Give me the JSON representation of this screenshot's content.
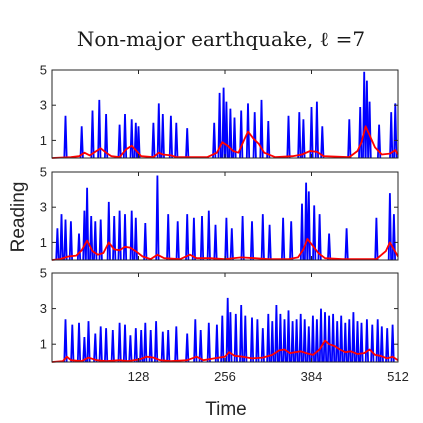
{
  "chart_data": {
    "type": "line",
    "title": "Non-major earthquake, ℓ =7",
    "xlabel": "Time",
    "ylabel": "Reading",
    "xlim": [
      0,
      512
    ],
    "ylim": [
      0,
      5
    ],
    "xticks": [
      "128",
      "256",
      "384",
      "512"
    ],
    "yticks": [
      "1",
      "3",
      "5"
    ],
    "colors": {
      "raw": "#0000ff",
      "smoothed": "#ff0000"
    },
    "panels": [
      {
        "spikes": [
          [
            20,
            2.4
          ],
          [
            44,
            1.8
          ],
          [
            60,
            2.7
          ],
          [
            70,
            3.3
          ],
          [
            80,
            2.5
          ],
          [
            100,
            1.9
          ],
          [
            108,
            2.5
          ],
          [
            118,
            2.2
          ],
          [
            124,
            2.0
          ],
          [
            128,
            1.8
          ],
          [
            150,
            2.0
          ],
          [
            158,
            3.1
          ],
          [
            164,
            2.5
          ],
          [
            176,
            2.4
          ],
          [
            184,
            2.0
          ],
          [
            200,
            1.7
          ],
          [
            240,
            2.0
          ],
          [
            248,
            3.7
          ],
          [
            254,
            4.0
          ],
          [
            258,
            3.2
          ],
          [
            264,
            2.8
          ],
          [
            270,
            2.3
          ],
          [
            280,
            2.7
          ],
          [
            290,
            3.1
          ],
          [
            300,
            2.6
          ],
          [
            310,
            3.3
          ],
          [
            320,
            2.1
          ],
          [
            350,
            2.4
          ],
          [
            366,
            2.6
          ],
          [
            372,
            2.2
          ],
          [
            384,
            2.9
          ],
          [
            392,
            3.2
          ],
          [
            400,
            1.8
          ],
          [
            440,
            2.2
          ],
          [
            456,
            2.9
          ],
          [
            462,
            4.9
          ],
          [
            466,
            4.4
          ],
          [
            470,
            3.2
          ],
          [
            484,
            1.9
          ],
          [
            502,
            2.6
          ],
          [
            508,
            3.1
          ]
        ],
        "smooth": [
          [
            0,
            0
          ],
          [
            28,
            0.05
          ],
          [
            40,
            0.1
          ],
          [
            48,
            0.3
          ],
          [
            56,
            0.15
          ],
          [
            64,
            0.35
          ],
          [
            72,
            0.55
          ],
          [
            80,
            0.3
          ],
          [
            88,
            0.1
          ],
          [
            100,
            0.05
          ],
          [
            110,
            0.5
          ],
          [
            118,
            0.7
          ],
          [
            124,
            0.45
          ],
          [
            132,
            0.1
          ],
          [
            150,
            0.05
          ],
          [
            158,
            0.3
          ],
          [
            164,
            0.2
          ],
          [
            176,
            0.15
          ],
          [
            184,
            0.05
          ],
          [
            230,
            0.05
          ],
          [
            244,
            0.3
          ],
          [
            252,
            0.9
          ],
          [
            260,
            0.7
          ],
          [
            268,
            0.4
          ],
          [
            276,
            0.3
          ],
          [
            284,
            1.0
          ],
          [
            290,
            1.5
          ],
          [
            298,
            1.1
          ],
          [
            306,
            0.8
          ],
          [
            314,
            0.3
          ],
          [
            330,
            0.05
          ],
          [
            356,
            0.1
          ],
          [
            370,
            0.2
          ],
          [
            382,
            0.4
          ],
          [
            392,
            0.35
          ],
          [
            402,
            0.1
          ],
          [
            440,
            0.05
          ],
          [
            452,
            0.4
          ],
          [
            458,
            0.9
          ],
          [
            464,
            1.8
          ],
          [
            470,
            1.3
          ],
          [
            478,
            0.6
          ],
          [
            488,
            0.2
          ],
          [
            500,
            0.25
          ],
          [
            508,
            0.45
          ],
          [
            512,
            0.2
          ]
        ]
      },
      {
        "spikes": [
          [
            8,
            1.8
          ],
          [
            14,
            2.6
          ],
          [
            20,
            2.3
          ],
          [
            28,
            2.2
          ],
          [
            40,
            1.5
          ],
          [
            48,
            2.8
          ],
          [
            52,
            4.1
          ],
          [
            58,
            2.5
          ],
          [
            64,
            2.2
          ],
          [
            72,
            2.3
          ],
          [
            84,
            3.3
          ],
          [
            92,
            2.5
          ],
          [
            100,
            2.8
          ],
          [
            108,
            2.6
          ],
          [
            118,
            2.8
          ],
          [
            124,
            2.4
          ],
          [
            138,
            2.1
          ],
          [
            156,
            4.8
          ],
          [
            172,
            2.6
          ],
          [
            186,
            2.2
          ],
          [
            200,
            2.6
          ],
          [
            210,
            2.4
          ],
          [
            222,
            2.5
          ],
          [
            232,
            2.8
          ],
          [
            242,
            2.0
          ],
          [
            258,
            2.4
          ],
          [
            266,
            1.8
          ],
          [
            282,
            2.5
          ],
          [
            296,
            2.2
          ],
          [
            312,
            2.6
          ],
          [
            322,
            2.0
          ],
          [
            342,
            2.4
          ],
          [
            354,
            2.2
          ],
          [
            370,
            3.2
          ],
          [
            376,
            4.4
          ],
          [
            380,
            3.9
          ],
          [
            388,
            3.1
          ],
          [
            396,
            2.6
          ],
          [
            410,
            1.5
          ],
          [
            436,
            1.8
          ],
          [
            480,
            2.4
          ],
          [
            500,
            3.8
          ],
          [
            506,
            2.6
          ]
        ],
        "smooth": [
          [
            0,
            0
          ],
          [
            12,
            0.05
          ],
          [
            24,
            0.2
          ],
          [
            36,
            0.25
          ],
          [
            44,
            0.55
          ],
          [
            52,
            1.1
          ],
          [
            60,
            0.5
          ],
          [
            68,
            0.3
          ],
          [
            76,
            0.4
          ],
          [
            84,
            1.0
          ],
          [
            92,
            0.6
          ],
          [
            100,
            0.55
          ],
          [
            108,
            0.75
          ],
          [
            116,
            0.7
          ],
          [
            124,
            0.5
          ],
          [
            134,
            0.2
          ],
          [
            146,
            0.05
          ],
          [
            156,
            0.3
          ],
          [
            166,
            0.1
          ],
          [
            190,
            0.05
          ],
          [
            204,
            0.3
          ],
          [
            214,
            0.1
          ],
          [
            234,
            0.1
          ],
          [
            256,
            0.05
          ],
          [
            280,
            0.15
          ],
          [
            300,
            0.1
          ],
          [
            320,
            0.05
          ],
          [
            350,
            0.05
          ],
          [
            364,
            0.15
          ],
          [
            372,
            0.6
          ],
          [
            378,
            1.2
          ],
          [
            386,
            0.8
          ],
          [
            394,
            0.4
          ],
          [
            404,
            0.1
          ],
          [
            430,
            0.05
          ],
          [
            480,
            0.05
          ],
          [
            494,
            0.5
          ],
          [
            500,
            1.0
          ],
          [
            506,
            0.6
          ],
          [
            512,
            0.2
          ]
        ]
      },
      {
        "spikes": [
          [
            20,
            2.4
          ],
          [
            30,
            2.1
          ],
          [
            40,
            2.2
          ],
          [
            48,
            1.4
          ],
          [
            54,
            2.3
          ],
          [
            64,
            1.6
          ],
          [
            72,
            2.0
          ],
          [
            80,
            1.9
          ],
          [
            90,
            1.8
          ],
          [
            100,
            2.2
          ],
          [
            108,
            2.1
          ],
          [
            116,
            1.5
          ],
          [
            124,
            1.9
          ],
          [
            132,
            1.8
          ],
          [
            138,
            2.2
          ],
          [
            146,
            1.8
          ],
          [
            154,
            2.3
          ],
          [
            164,
            1.7
          ],
          [
            172,
            1.8
          ],
          [
            184,
            2.0
          ],
          [
            200,
            1.6
          ],
          [
            212,
            2.4
          ],
          [
            220,
            1.8
          ],
          [
            232,
            2.2
          ],
          [
            244,
            2.1
          ],
          [
            252,
            2.6
          ],
          [
            260,
            3.6
          ],
          [
            264,
            2.8
          ],
          [
            272,
            2.7
          ],
          [
            280,
            3.2
          ],
          [
            286,
            2.6
          ],
          [
            296,
            2.5
          ],
          [
            304,
            2.4
          ],
          [
            312,
            1.9
          ],
          [
            320,
            2.7
          ],
          [
            326,
            2.3
          ],
          [
            332,
            3.2
          ],
          [
            338,
            2.7
          ],
          [
            344,
            2.4
          ],
          [
            350,
            2.9
          ],
          [
            356,
            2.3
          ],
          [
            362,
            2.4
          ],
          [
            368,
            2.7
          ],
          [
            374,
            2.4
          ],
          [
            380,
            2.0
          ],
          [
            386,
            2.6
          ],
          [
            392,
            2.4
          ],
          [
            398,
            3.0
          ],
          [
            404,
            2.8
          ],
          [
            410,
            2.6
          ],
          [
            416,
            2.7
          ],
          [
            422,
            2.3
          ],
          [
            428,
            2.6
          ],
          [
            434,
            2.2
          ],
          [
            440,
            2.4
          ],
          [
            446,
            2.8
          ],
          [
            452,
            2.3
          ],
          [
            458,
            2.2
          ],
          [
            466,
            2.4
          ],
          [
            474,
            2.1
          ],
          [
            482,
            2.4
          ],
          [
            488,
            2.0
          ],
          [
            496,
            1.9
          ],
          [
            504,
            2.1
          ]
        ],
        "smooth": [
          [
            0,
            0
          ],
          [
            16,
            0.05
          ],
          [
            22,
            0.3
          ],
          [
            28,
            0.1
          ],
          [
            44,
            0.05
          ],
          [
            54,
            0.25
          ],
          [
            66,
            0.1
          ],
          [
            80,
            0.05
          ],
          [
            100,
            0.1
          ],
          [
            112,
            0.05
          ],
          [
            130,
            0.15
          ],
          [
            140,
            0.3
          ],
          [
            150,
            0.25
          ],
          [
            160,
            0.1
          ],
          [
            176,
            0.05
          ],
          [
            200,
            0.1
          ],
          [
            214,
            0.3
          ],
          [
            224,
            0.1
          ],
          [
            240,
            0.2
          ],
          [
            256,
            0.3
          ],
          [
            262,
            0.55
          ],
          [
            270,
            0.35
          ],
          [
            282,
            0.3
          ],
          [
            296,
            0.2
          ],
          [
            312,
            0.25
          ],
          [
            326,
            0.4
          ],
          [
            336,
            0.65
          ],
          [
            344,
            0.7
          ],
          [
            352,
            0.5
          ],
          [
            360,
            0.55
          ],
          [
            368,
            0.6
          ],
          [
            376,
            0.5
          ],
          [
            386,
            0.4
          ],
          [
            396,
            0.7
          ],
          [
            404,
            1.2
          ],
          [
            410,
            1.0
          ],
          [
            418,
            0.9
          ],
          [
            426,
            0.7
          ],
          [
            434,
            0.55
          ],
          [
            442,
            0.6
          ],
          [
            452,
            0.45
          ],
          [
            462,
            0.5
          ],
          [
            470,
            0.7
          ],
          [
            478,
            0.4
          ],
          [
            486,
            0.35
          ],
          [
            496,
            0.2
          ],
          [
            504,
            0.3
          ],
          [
            512,
            0.1
          ]
        ]
      }
    ]
  }
}
